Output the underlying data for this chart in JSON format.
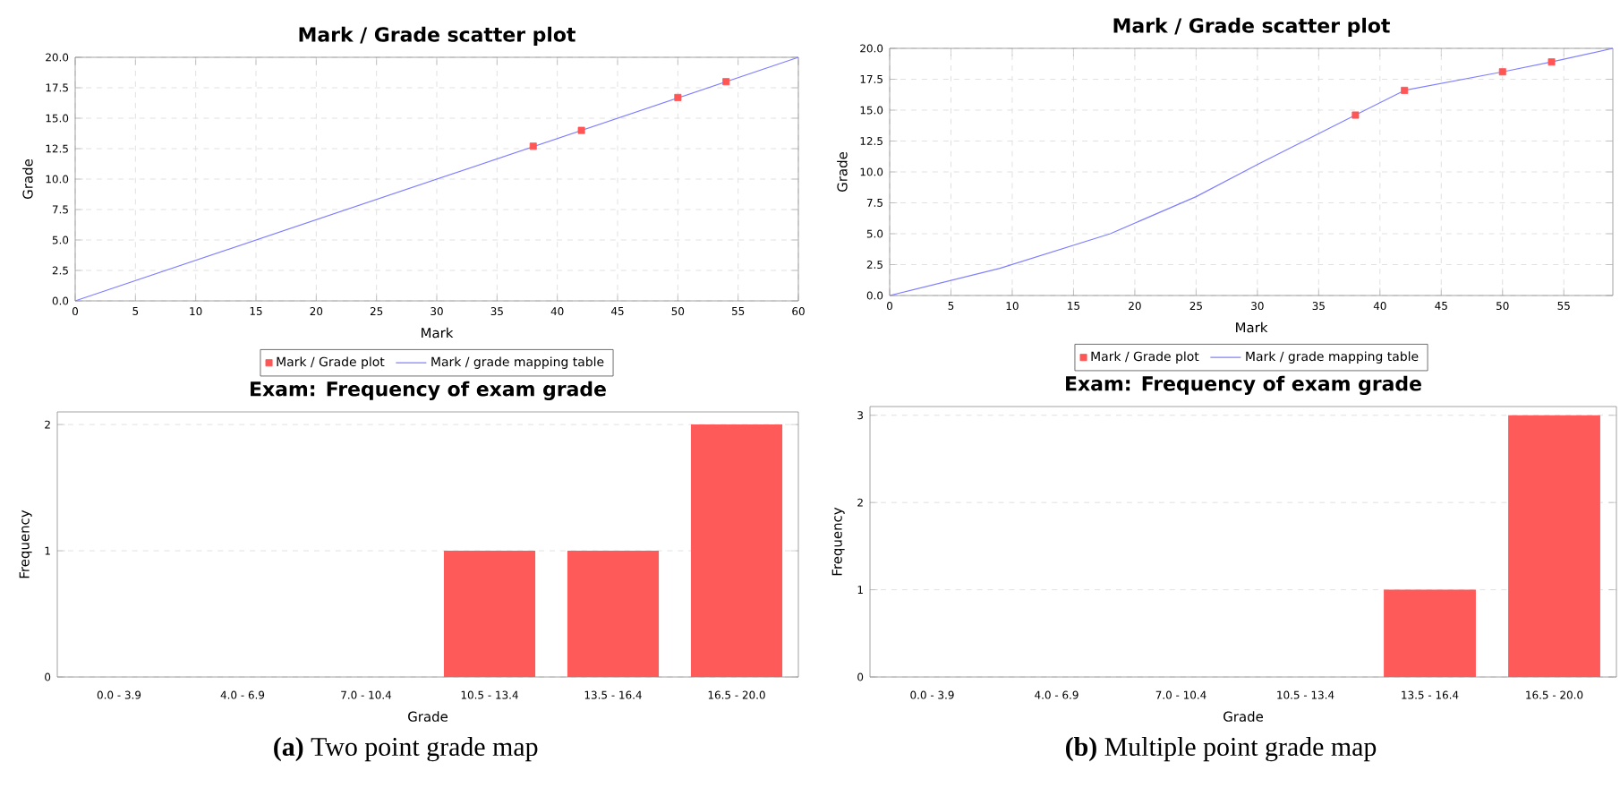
{
  "chart_data": [
    {
      "type": "scatter",
      "title": "Mark / Grade scatter plot",
      "xlabel": "Mark",
      "ylabel": "Grade",
      "xlim": [
        0,
        60
      ],
      "ylim": [
        0,
        20
      ],
      "xticks": [
        0,
        5,
        10,
        15,
        20,
        25,
        30,
        35,
        40,
        45,
        50,
        55,
        60
      ],
      "yticks": [
        {
          "value": 0,
          "label": "0.0"
        },
        {
          "value": 2.5,
          "label": "2.5"
        },
        {
          "value": 5,
          "label": "5.0"
        },
        {
          "value": 7.5,
          "label": "7.5"
        },
        {
          "value": 10,
          "label": "10.0"
        },
        {
          "value": 12.5,
          "label": "12.5"
        },
        {
          "value": 15,
          "label": "15.0"
        },
        {
          "value": 17.5,
          "label": "17.5"
        },
        {
          "value": 20,
          "label": "20.0"
        }
      ],
      "grid": true,
      "legend": "bottom",
      "series": [
        {
          "name": "Mark / Grade plot",
          "type": "scatter",
          "marker": "square",
          "color": "#ff5555",
          "x": [
            38,
            42,
            50,
            54
          ],
          "values": [
            12.7,
            14.0,
            16.7,
            18.0
          ]
        },
        {
          "name": "Mark / grade mapping table",
          "type": "line",
          "marker": "none",
          "color": "#8080ff",
          "x": [
            0,
            60
          ],
          "values": [
            0,
            20
          ]
        }
      ]
    },
    {
      "type": "scatter",
      "title": "Mark / Grade scatter plot",
      "xlabel": "Mark",
      "ylabel": "Grade",
      "xlim": [
        0,
        59
      ],
      "ylim": [
        0,
        20
      ],
      "xticks": [
        0,
        5,
        10,
        15,
        20,
        25,
        30,
        35,
        40,
        45,
        50,
        55
      ],
      "yticks": [
        {
          "value": 0,
          "label": "0.0"
        },
        {
          "value": 2.5,
          "label": "2.5"
        },
        {
          "value": 5,
          "label": "5.0"
        },
        {
          "value": 7.5,
          "label": "7.5"
        },
        {
          "value": 10,
          "label": "10.0"
        },
        {
          "value": 12.5,
          "label": "12.5"
        },
        {
          "value": 15,
          "label": "15.0"
        },
        {
          "value": 17.5,
          "label": "17.5"
        },
        {
          "value": 20,
          "label": "20.0"
        }
      ],
      "grid": true,
      "legend": "bottom",
      "series": [
        {
          "name": "Mark / Grade plot",
          "type": "scatter",
          "marker": "square",
          "color": "#ff5555",
          "x": [
            38,
            42,
            50,
            54
          ],
          "values": [
            14.6,
            16.6,
            18.1,
            18.9
          ]
        },
        {
          "name": "Mark / grade mapping table",
          "type": "line",
          "marker": "none",
          "color": "#8080ff",
          "x": [
            0,
            9,
            18,
            25,
            30,
            38,
            42,
            50,
            54,
            59
          ],
          "values": [
            0,
            2.2,
            5.0,
            8.0,
            10.6,
            14.6,
            16.6,
            18.1,
            18.9,
            20
          ]
        }
      ]
    },
    {
      "type": "bar",
      "title": "Exam: Frequency of exam grade",
      "xlabel": "Grade",
      "ylabel": "Frequency",
      "categories": [
        "0.0 - 3.9",
        "4.0 - 6.9",
        "7.0 - 10.4",
        "10.5 - 13.4",
        "13.5 - 16.4",
        "16.5 - 20.0"
      ],
      "values": [
        0,
        0,
        0,
        1,
        1,
        2
      ],
      "color": "#ff5a5a",
      "ylim": [
        0,
        2.1
      ],
      "yticks": [
        0,
        1,
        2
      ],
      "grid": "y",
      "annotations": [
        "**(a)** Two point grade map"
      ]
    },
    {
      "type": "bar",
      "title": "Exam: Frequency of exam grade",
      "xlabel": "Grade",
      "ylabel": "Frequency",
      "categories": [
        "0.0 - 3.9",
        "4.0 - 6.9",
        "7.0 - 10.4",
        "10.5 - 13.4",
        "13.5 - 16.4",
        "16.5 - 20.0"
      ],
      "values": [
        0,
        0,
        0,
        0,
        1,
        3
      ],
      "color": "#ff5a5a",
      "ylim": [
        0,
        3.1
      ],
      "yticks": [
        0,
        1,
        2,
        3
      ],
      "grid": "y",
      "annotations": [
        "**(b)** Multiple point grade map"
      ]
    }
  ]
}
